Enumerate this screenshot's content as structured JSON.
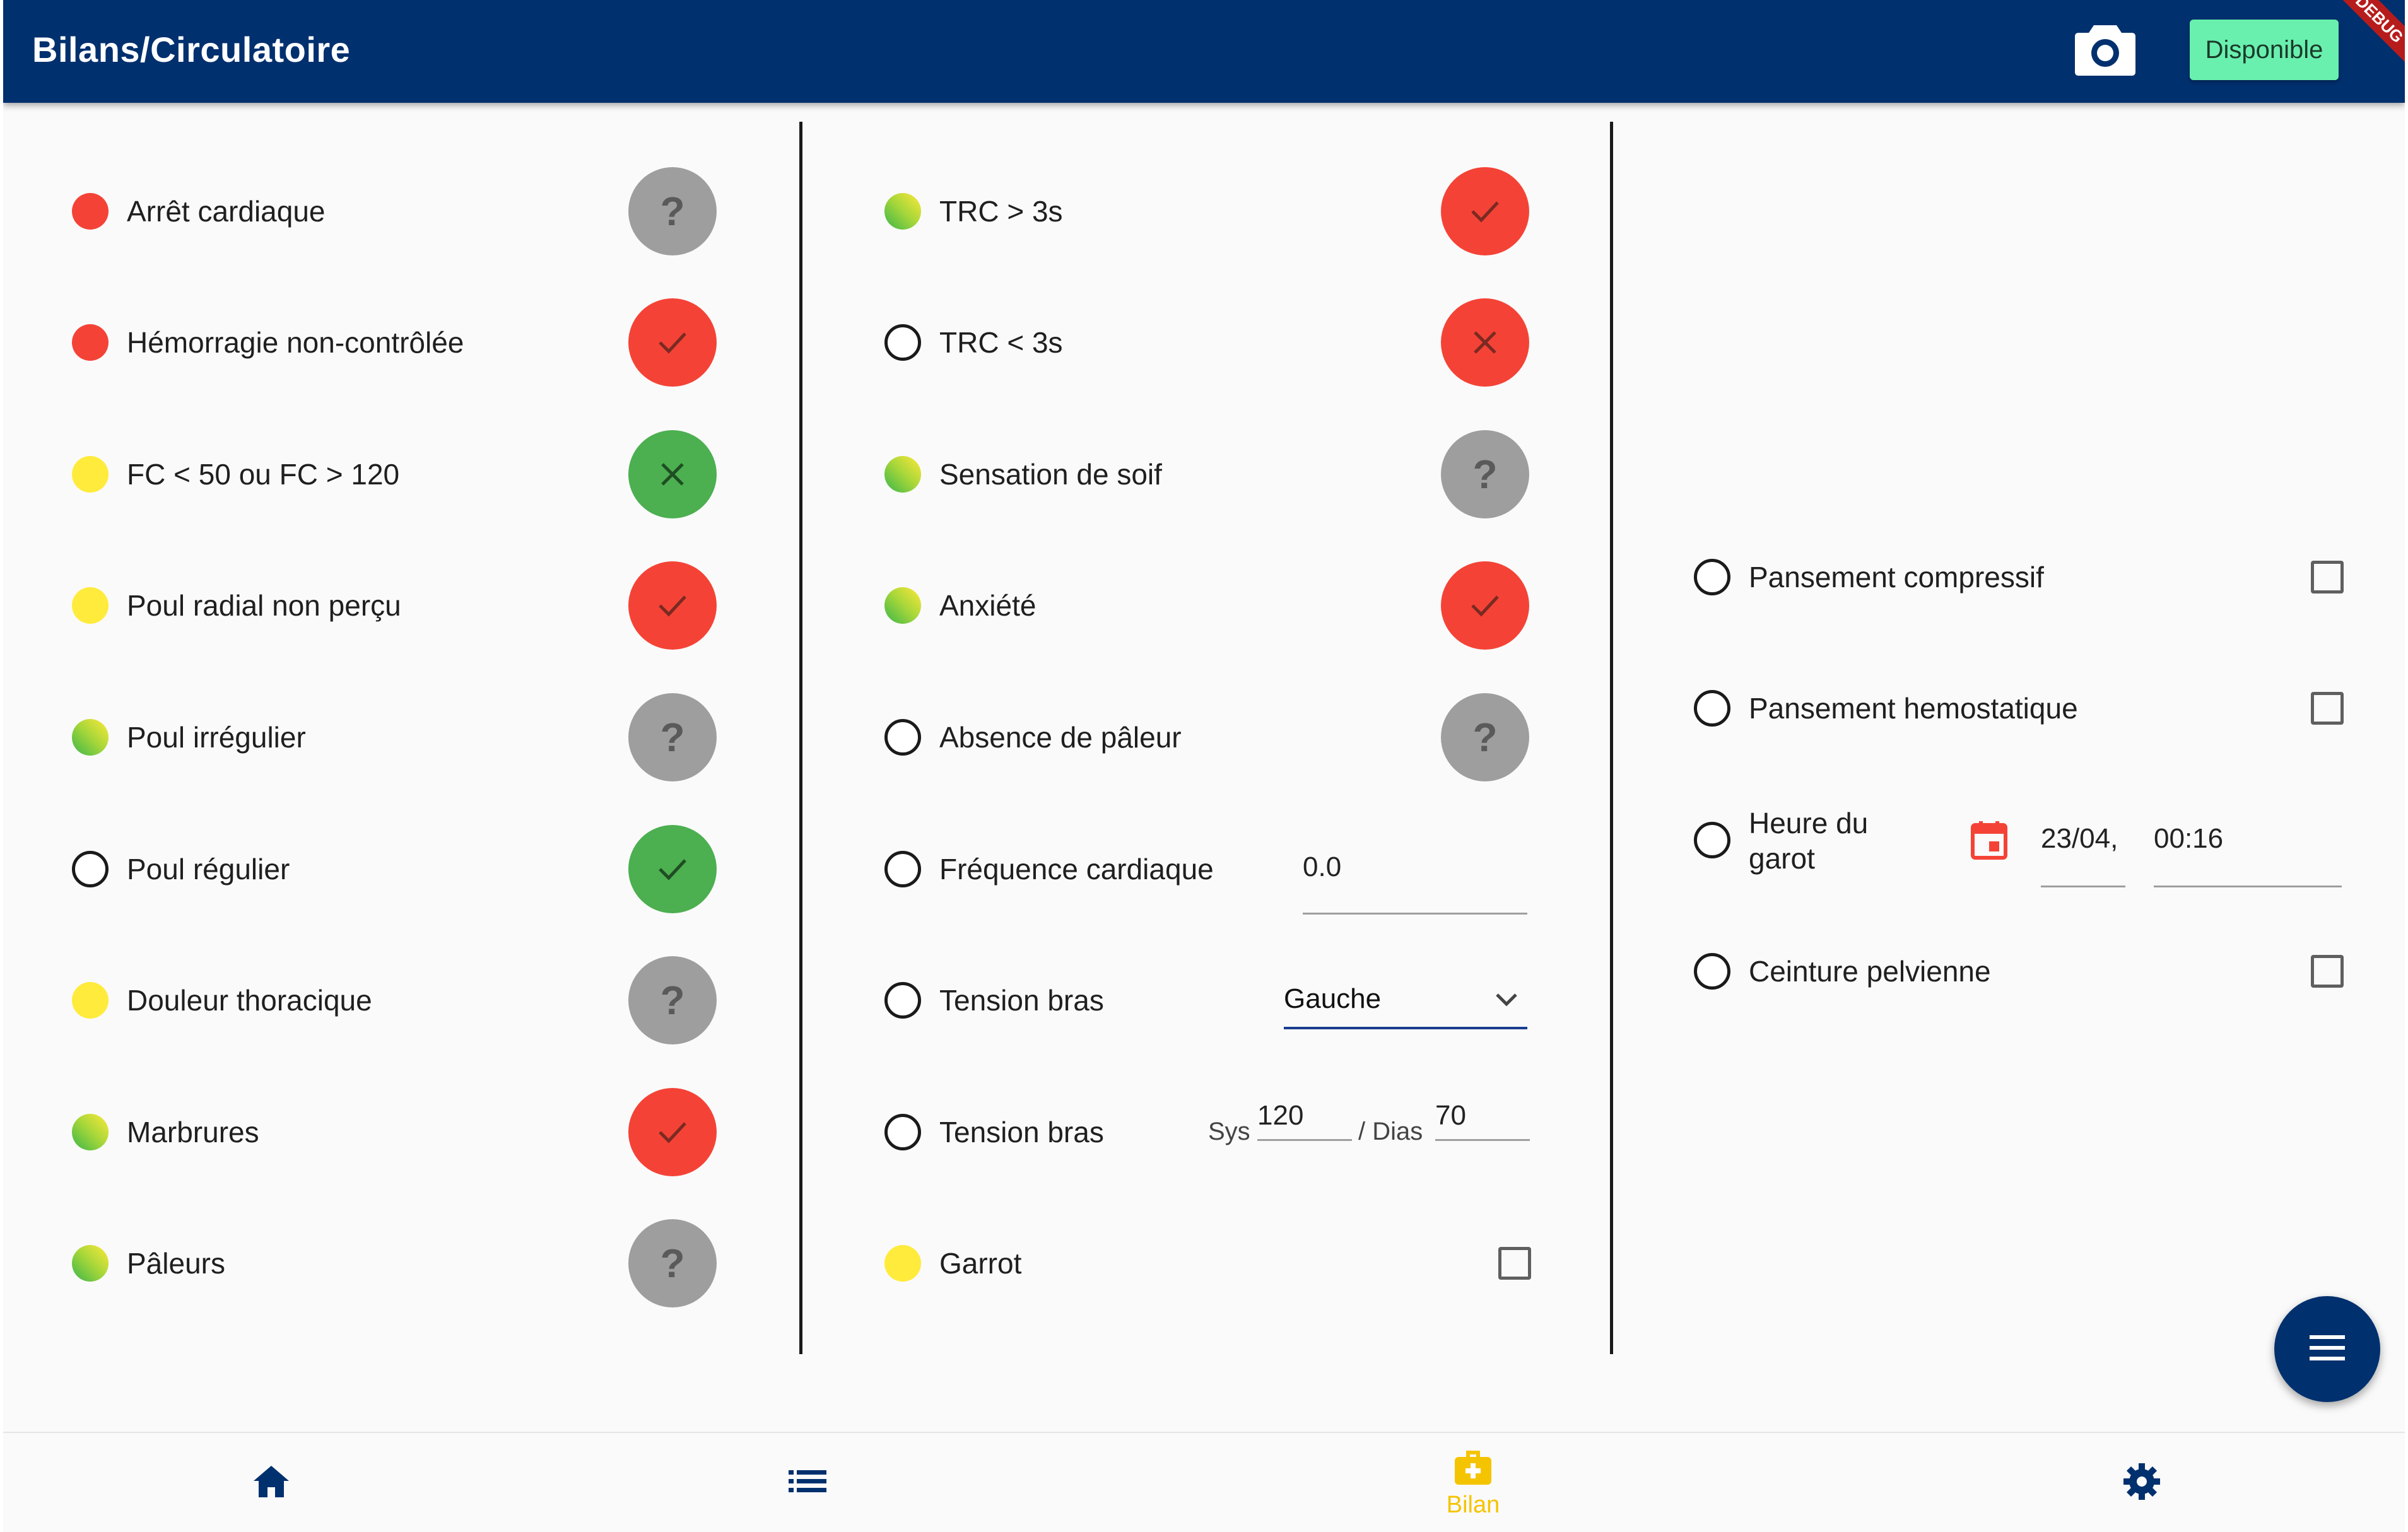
{
  "appbar": {
    "title": "Bilans/Circulatoire",
    "camera_icon": "camera-icon",
    "status_button": "Disponible",
    "debug_ribbon": "DEBUG"
  },
  "colors": {
    "primary": "#00306e",
    "status_green": "#69f0ae",
    "red": "#f44336",
    "green": "#4caf50",
    "grey": "#9e9e9e",
    "yellow": "#ffeb3b",
    "nav_active": "#f5c400"
  },
  "column1": {
    "items": [
      {
        "label": "Arrêt cardiaque",
        "severity": "red",
        "state": "unknown",
        "state_icon": "question-icon"
      },
      {
        "label": "Hémorragie non-contrôlée",
        "severity": "red",
        "state": "yes",
        "state_icon": "check-icon"
      },
      {
        "label": "FC < 50 ou FC > 120",
        "severity": "yellow",
        "state": "no",
        "state_icon": "close-icon"
      },
      {
        "label": "Poul radial non perçu",
        "severity": "yellow",
        "state": "yes",
        "state_icon": "check-icon"
      },
      {
        "label": "Poul irrégulier",
        "severity": "gradient",
        "state": "unknown",
        "state_icon": "question-icon"
      },
      {
        "label": "Poul régulier",
        "severity": "none",
        "state": "ok",
        "state_icon": "check-icon"
      },
      {
        "label": "Douleur thoracique",
        "severity": "yellow",
        "state": "unknown",
        "state_icon": "question-icon"
      },
      {
        "label": "Marbrures",
        "severity": "gradient",
        "state": "yes",
        "state_icon": "check-icon"
      },
      {
        "label": "Pâleurs",
        "severity": "gradient",
        "state": "unknown",
        "state_icon": "question-icon"
      }
    ]
  },
  "column2": {
    "items": [
      {
        "label": "TRC > 3s",
        "severity": "gradient",
        "state": "yes",
        "state_icon": "check-icon"
      },
      {
        "label": "TRC < 3s",
        "severity": "none",
        "state": "no",
        "state_icon": "close-icon"
      },
      {
        "label": "Sensation de soif",
        "severity": "gradient",
        "state": "unknown",
        "state_icon": "question-icon"
      },
      {
        "label": "Anxiété",
        "severity": "gradient",
        "state": "yes",
        "state_icon": "check-icon"
      },
      {
        "label": "Absence de pâleur",
        "severity": "none",
        "state": "unknown",
        "state_icon": "question-icon"
      }
    ],
    "heart_rate": {
      "label": "Fréquence cardiaque",
      "value": "0.0"
    },
    "arm_select": {
      "label": "Tension bras",
      "selected": "Gauche"
    },
    "blood_pressure": {
      "label": "Tension bras",
      "sys_label": "Sys",
      "sys_value": "120",
      "dias_label": "/ Dias",
      "dias_value": "70"
    },
    "tourniquet": {
      "label": "Garrot",
      "checked": false
    }
  },
  "column3": {
    "compressive": {
      "label": "Pansement compressif",
      "checked": false
    },
    "hemostatic": {
      "label": "Pansement hemostatique",
      "checked": false
    },
    "tourniquet_time": {
      "label_line1": "Heure du",
      "label_line2": "garot",
      "date": "23/04,",
      "time": "00:16"
    },
    "pelvic_belt": {
      "label": "Ceinture pelvienne",
      "checked": false
    }
  },
  "bottom_nav": {
    "items": [
      {
        "icon": "home-icon",
        "label": ""
      },
      {
        "icon": "list-icon",
        "label": ""
      },
      {
        "icon": "medical-bag-icon",
        "label": "Bilan",
        "active": true
      },
      {
        "icon": "settings-icon",
        "label": ""
      }
    ]
  },
  "fab": {
    "icon": "menu-icon"
  }
}
